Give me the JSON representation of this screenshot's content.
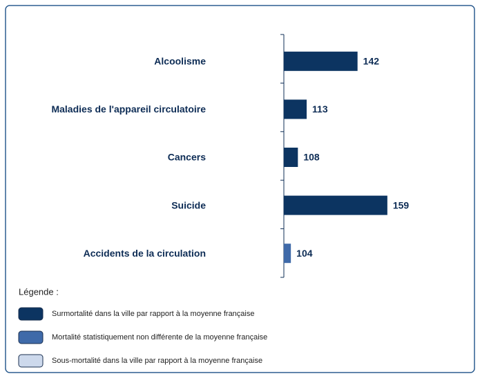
{
  "chart_data": {
    "type": "bar",
    "orientation": "horizontal",
    "categories": [
      "Alcoolisme",
      "Maladies de l'appareil circulatoire",
      "Cancers",
      "Suicide",
      "Accidents de la circulation"
    ],
    "values": [
      142,
      113,
      108,
      159,
      104
    ],
    "colors": [
      "#0c3461",
      "#0c3461",
      "#0c3461",
      "#0c3461",
      "#3f6aa9"
    ],
    "xlim": [
      100,
      200
    ],
    "legend_title": "Légende :",
    "legend": [
      {
        "label": "Surmortalité dans la ville par rapport à la moyenne française",
        "color": "#0c3461"
      },
      {
        "label": "Mortalité statistiquement non différente de la moyenne française",
        "color": "#3f6aa9"
      },
      {
        "label": "Sous-mortalité dans la ville par rapport à la moyenne française",
        "color": "#cdd9ec"
      }
    ]
  }
}
